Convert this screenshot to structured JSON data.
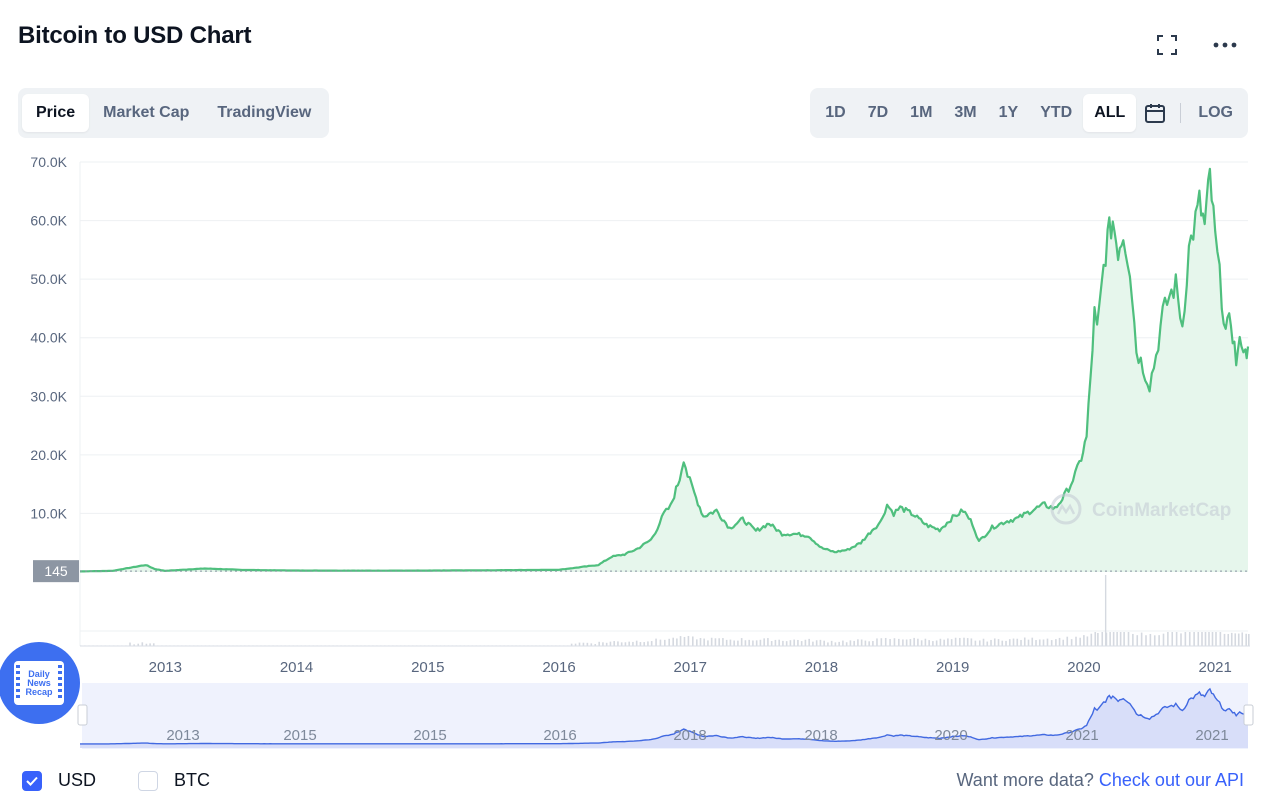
{
  "header": {
    "title": "Bitcoin to USD Chart",
    "fullscreen_icon": "expand-icon",
    "more_icon": "more-horizontal-icon"
  },
  "view_tabs": [
    {
      "label": "Price",
      "active": true
    },
    {
      "label": "Market Cap",
      "active": false
    },
    {
      "label": "TradingView",
      "active": false
    }
  ],
  "range_tabs": [
    {
      "label": "1D",
      "active": false
    },
    {
      "label": "7D",
      "active": false
    },
    {
      "label": "1M",
      "active": false
    },
    {
      "label": "3M",
      "active": false
    },
    {
      "label": "1Y",
      "active": false
    },
    {
      "label": "YTD",
      "active": false
    },
    {
      "label": "ALL",
      "active": true
    }
  ],
  "calendar_icon": "calendar-icon",
  "log_label": "LOG",
  "watermark": "CoinMarketCap",
  "badge": {
    "line1": "Daily",
    "line2": "News",
    "line3": "Recap"
  },
  "footer": {
    "usd_label": "USD",
    "usd_checked": true,
    "btc_label": "BTC",
    "btc_checked": false,
    "more_text": "Want more data?",
    "api_link": "Check out our API"
  },
  "colors": {
    "line": "#4fbf7e",
    "fill": "#e6f6ec",
    "accent": "#3861fb",
    "navigator_line": "#4169e1",
    "navigator_fill": "#dfe4fb"
  },
  "chart_data": {
    "type": "area",
    "title": "",
    "xlabel": "",
    "ylabel": "",
    "xlim": [
      2012.35,
      2021.25
    ],
    "ylim": [
      0,
      70000
    ],
    "y_ticks": [
      {
        "value": 10000,
        "label": "10.0K"
      },
      {
        "value": 20000,
        "label": "20.0K"
      },
      {
        "value": 30000,
        "label": "30.0K"
      },
      {
        "value": 40000,
        "label": "40.0K"
      },
      {
        "value": 50000,
        "label": "50.0K"
      },
      {
        "value": 60000,
        "label": "60.0K"
      },
      {
        "value": 70000,
        "label": "70.0K"
      }
    ],
    "x_ticks": [
      "2013",
      "2014",
      "2015",
      "2016",
      "2017",
      "2018",
      "2019",
      "2020",
      "2021"
    ],
    "navigator_ticks": [
      "2013",
      "2015",
      "2015",
      "2016",
      "2018",
      "2018",
      "2020",
      "2021",
      "2021"
    ],
    "current_label": "145",
    "current_value": 145,
    "grid": true,
    "series": [
      {
        "x": [
          2012.35,
          2012.6,
          2012.85,
          2012.92,
          2013.0,
          2013.3,
          2013.6,
          2014.0,
          2014.5,
          2015.0,
          2015.5,
          2016.0,
          2016.3,
          2016.4,
          2016.5,
          2016.6,
          2016.7,
          2016.75,
          2016.8,
          2016.85,
          2016.92,
          2016.95,
          2016.98,
          2017.03,
          2017.1,
          2017.2,
          2017.3,
          2017.4,
          2017.5,
          2017.6,
          2017.7,
          2017.8,
          2017.9,
          2018.0,
          2018.1,
          2018.2,
          2018.3,
          2018.4,
          2018.45,
          2018.5,
          2018.55,
          2018.6,
          2018.7,
          2018.8,
          2018.9,
          2019.0,
          2019.08,
          2019.15,
          2019.2,
          2019.3,
          2019.4,
          2019.5,
          2019.6,
          2019.7,
          2019.78,
          2019.85,
          2019.9,
          2019.95,
          2019.98,
          2020.02,
          2020.05,
          2020.08,
          2020.1,
          2020.15,
          2020.18,
          2020.22,
          2020.26,
          2020.3,
          2020.35,
          2020.4,
          2020.45,
          2020.5,
          2020.55,
          2020.6,
          2020.65,
          2020.7,
          2020.75,
          2020.8,
          2020.85,
          2020.88,
          2020.92,
          2020.96,
          2021.0,
          2021.05,
          2021.08,
          2021.12,
          2021.16,
          2021.2,
          2021.23,
          2021.25
        ],
        "values": [
          100,
          200,
          1200,
          500,
          200,
          600,
          350,
          250,
          230,
          240,
          300,
          380,
          1200,
          2600,
          3000,
          4000,
          5500,
          7500,
          10000,
          11200,
          16000,
          19500,
          16500,
          13500,
          9500,
          10500,
          7500,
          9000,
          7000,
          8300,
          6500,
          6500,
          6200,
          4100,
          3400,
          3800,
          5000,
          7500,
          8500,
          11500,
          10000,
          11000,
          9800,
          8000,
          7200,
          9300,
          10500,
          8300,
          5200,
          7600,
          8600,
          9200,
          10500,
          11500,
          10800,
          13000,
          15000,
          17500,
          19500,
          23000,
          33000,
          44000,
          41000,
          52000,
          57000,
          60000,
          55000,
          58000,
          52000,
          38000,
          35000,
          32000,
          37000,
          44000,
          47000,
          49000,
          42000,
          55000,
          60000,
          63000,
          59000,
          67500,
          57000,
          47000,
          41000,
          43000,
          36000,
          40000,
          37000,
          38500
        ]
      }
    ]
  }
}
